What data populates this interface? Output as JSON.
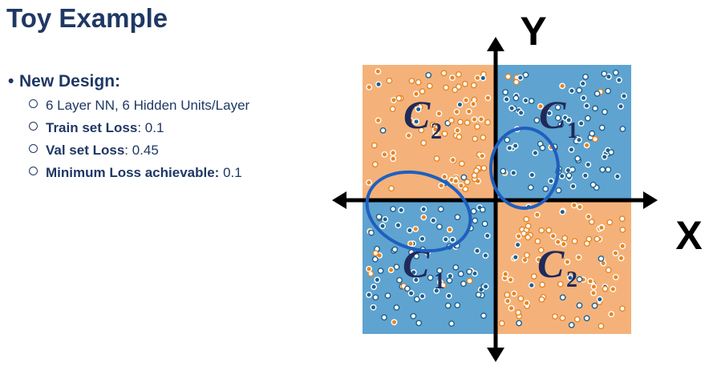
{
  "slide": {
    "title": "Toy Example",
    "bullet": "New Design:",
    "subitems": [
      {
        "label": "",
        "value": "6 Layer NN, 6 Hidden Units/Layer"
      },
      {
        "label": "Train set Loss",
        "value": ": 0.1"
      },
      {
        "label": "Val set Loss",
        "value": ": 0.45"
      },
      {
        "label": "Minimum Loss achievable:",
        "value": " 0.1"
      }
    ]
  },
  "diagram": {
    "x_axis_label": "X",
    "y_axis_label": "Y",
    "regions": [
      {
        "position": "top-left",
        "class_base": "C",
        "class_sub": "2",
        "color": "#f4b27a"
      },
      {
        "position": "top-right",
        "class_base": "C",
        "class_sub": "1",
        "color": "#5fa3d0"
      },
      {
        "position": "bottom-left",
        "class_base": "C",
        "class_sub": "1",
        "color": "#5fa3d0"
      },
      {
        "position": "bottom-right",
        "class_base": "C",
        "class_sub": "2",
        "color": "#f4b27a"
      }
    ],
    "colors": {
      "orange_point": "#e8841f",
      "blue_point": "#1d5f8e",
      "axis": "#000000",
      "ellipse": "#1f5fbf",
      "label": "#1f2a5a"
    }
  }
}
